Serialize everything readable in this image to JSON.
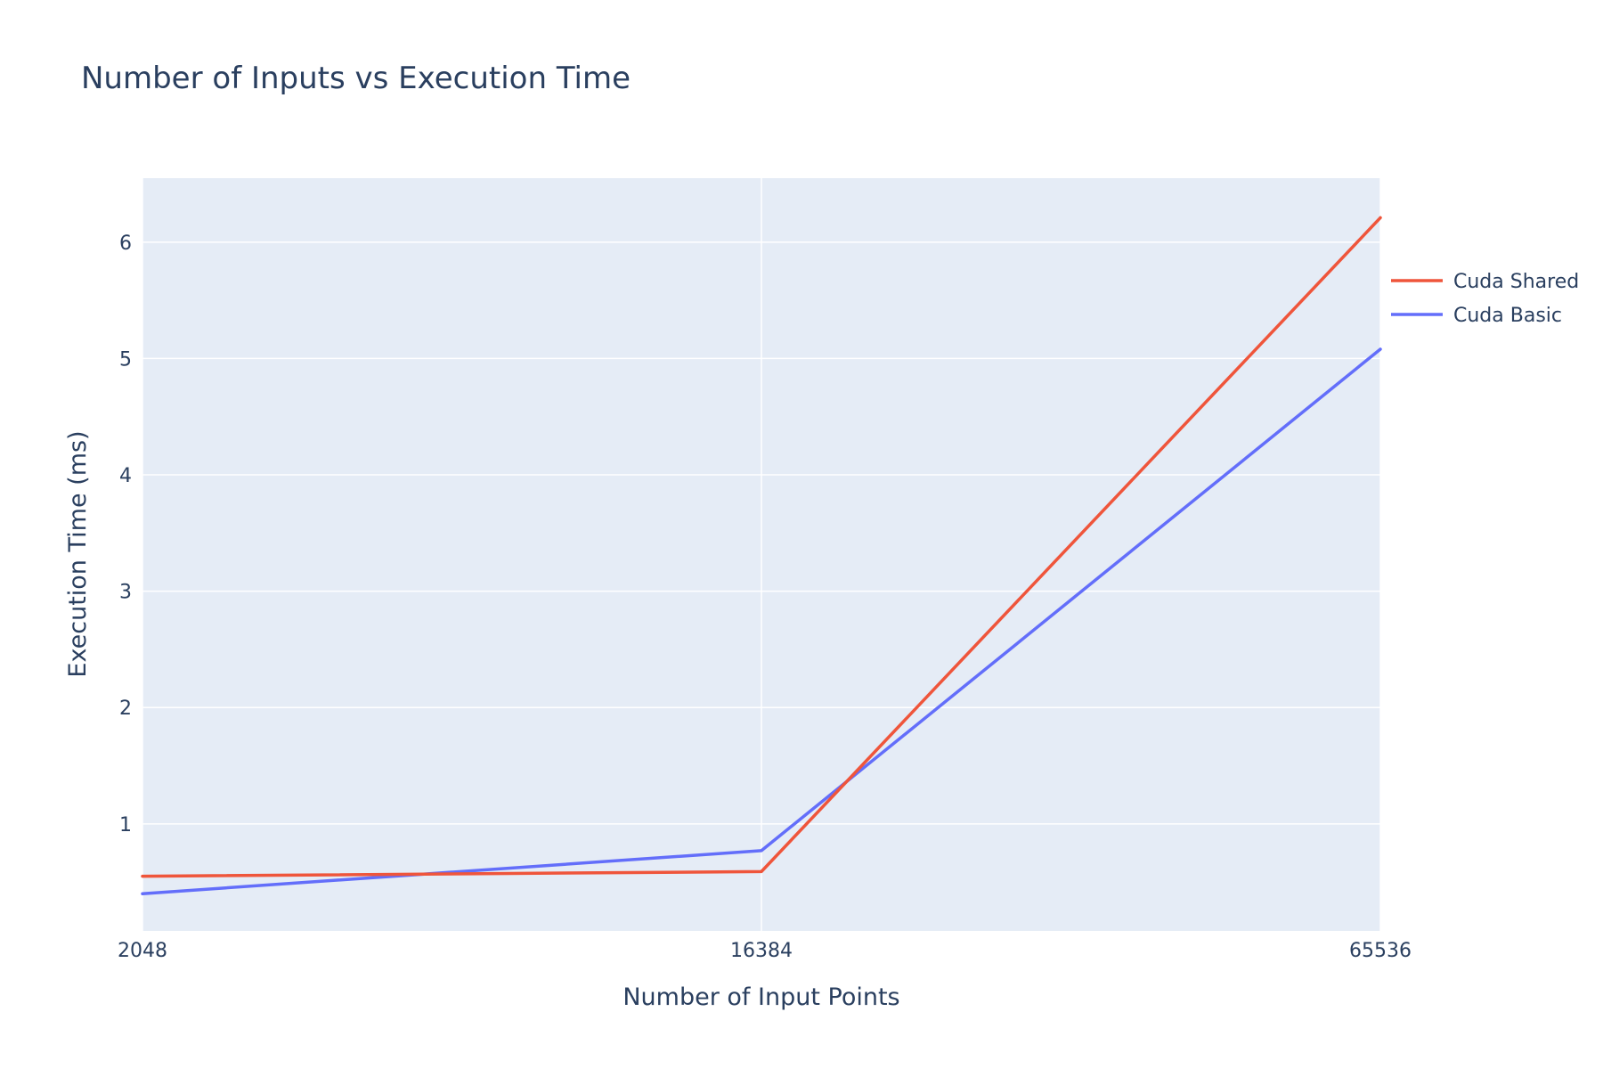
{
  "chart_data": {
    "type": "line",
    "title": "Number of Inputs vs Execution Time",
    "xlabel": "Number of Input Points",
    "ylabel": "Execution Time (ms)",
    "x_type": "category",
    "categories": [
      "2048",
      "16384",
      "65536"
    ],
    "ylim": [
      0.08,
      6.55
    ],
    "y_ticks": [
      1,
      2,
      3,
      4,
      5,
      6
    ],
    "grid": true,
    "legend_position": "right",
    "plot_bgcolor": "#e5ecf6",
    "paper_bgcolor": "#ffffff",
    "grid_color": "#ffffff",
    "font_color": "#2a3f5f",
    "series": [
      {
        "name": "Cuda Shared",
        "color": "#EF553B",
        "values": [
          0.55,
          0.59,
          6.21
        ]
      },
      {
        "name": "Cuda Basic",
        "color": "#636EFA",
        "values": [
          0.4,
          0.77,
          5.08
        ]
      }
    ]
  }
}
